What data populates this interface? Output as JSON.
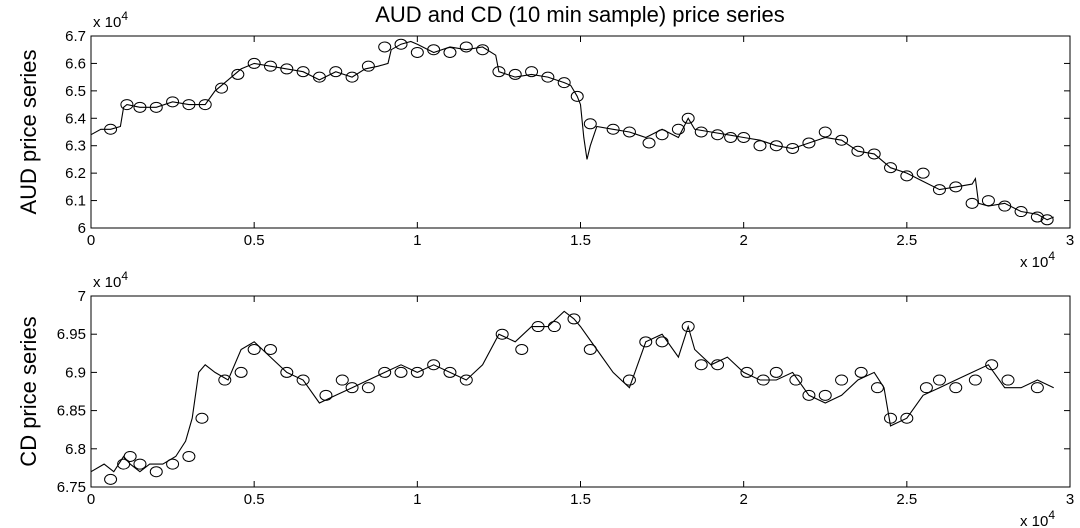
{
  "chart_data": [
    {
      "type": "line",
      "title": "AUD and CD (10 min sample) price series",
      "ylabel": "AUD price series",
      "xlabel": "",
      "x_multiplier_label": "x 10",
      "x_multiplier_exp": "4",
      "y_multiplier_label": "x 10",
      "y_multiplier_exp": "4",
      "xlim": [
        0,
        3
      ],
      "ylim": [
        6.0,
        6.7
      ],
      "xticks": [
        "0",
        "0.5",
        "1",
        "1.5",
        "2",
        "2.5",
        "3"
      ],
      "xtick_values": [
        0,
        0.5,
        1,
        1.5,
        2,
        2.5,
        3
      ],
      "yticks": [
        "6",
        "6.1",
        "6.2",
        "6.3",
        "6.4",
        "6.5",
        "6.6",
        "6.7"
      ],
      "ytick_values": [
        6.0,
        6.1,
        6.2,
        6.3,
        6.4,
        6.5,
        6.6,
        6.7
      ],
      "grid": false,
      "series_color": "#000000",
      "series": [
        {
          "x": [
            0,
            0.03,
            0.06,
            0.09,
            0.1,
            0.11,
            0.15,
            0.2,
            0.25,
            0.3,
            0.35,
            0.38,
            0.42,
            0.46,
            0.5,
            0.55,
            0.6,
            0.65,
            0.7,
            0.75,
            0.8,
            0.84,
            0.88,
            0.91,
            0.92,
            0.95,
            0.98,
            1.0,
            1.05,
            1.1,
            1.15,
            1.2,
            1.24,
            1.25,
            1.3,
            1.35,
            1.4,
            1.45,
            1.47,
            1.49,
            1.5,
            1.51,
            1.52,
            1.53,
            1.55,
            1.6,
            1.65,
            1.7,
            1.75,
            1.8,
            1.83,
            1.85,
            1.9,
            1.95,
            2.0,
            2.05,
            2.1,
            2.15,
            2.2,
            2.25,
            2.3,
            2.35,
            2.4,
            2.45,
            2.5,
            2.55,
            2.6,
            2.65,
            2.7,
            2.71,
            2.72,
            2.75,
            2.8,
            2.85,
            2.9,
            2.93,
            2.95
          ],
          "values": [
            6.34,
            6.36,
            6.36,
            6.37,
            6.44,
            6.45,
            6.44,
            6.44,
            6.46,
            6.45,
            6.45,
            6.5,
            6.54,
            6.58,
            6.6,
            6.59,
            6.58,
            6.57,
            6.54,
            6.57,
            6.55,
            6.58,
            6.59,
            6.6,
            6.65,
            6.67,
            6.68,
            6.67,
            6.64,
            6.66,
            6.65,
            6.66,
            6.63,
            6.57,
            6.55,
            6.56,
            6.55,
            6.53,
            6.52,
            6.48,
            6.45,
            6.33,
            6.25,
            6.3,
            6.37,
            6.36,
            6.35,
            6.33,
            6.36,
            6.33,
            6.4,
            6.36,
            6.35,
            6.34,
            6.33,
            6.32,
            6.3,
            6.29,
            6.31,
            6.33,
            6.32,
            6.28,
            6.27,
            6.22,
            6.2,
            6.17,
            6.14,
            6.15,
            6.16,
            6.18,
            6.09,
            6.08,
            6.09,
            6.06,
            6.05,
            6.03,
            6.04
          ]
        }
      ],
      "markers": {
        "x": [
          0.06,
          0.11,
          0.15,
          0.2,
          0.25,
          0.3,
          0.35,
          0.4,
          0.45,
          0.5,
          0.55,
          0.6,
          0.65,
          0.7,
          0.75,
          0.8,
          0.85,
          0.9,
          0.95,
          1.0,
          1.05,
          1.1,
          1.15,
          1.2,
          1.25,
          1.3,
          1.35,
          1.4,
          1.45,
          1.49,
          1.53,
          1.6,
          1.65,
          1.71,
          1.75,
          1.8,
          1.83,
          1.87,
          1.92,
          1.96,
          2.0,
          2.05,
          2.1,
          2.15,
          2.2,
          2.25,
          2.3,
          2.35,
          2.4,
          2.45,
          2.5,
          2.55,
          2.6,
          2.65,
          2.7,
          2.75,
          2.8,
          2.85,
          2.9,
          2.93
        ],
        "values": [
          6.36,
          6.45,
          6.44,
          6.44,
          6.46,
          6.45,
          6.45,
          6.51,
          6.56,
          6.6,
          6.59,
          6.58,
          6.57,
          6.55,
          6.57,
          6.55,
          6.59,
          6.66,
          6.67,
          6.64,
          6.65,
          6.64,
          6.66,
          6.65,
          6.57,
          6.56,
          6.57,
          6.55,
          6.53,
          6.48,
          6.38,
          6.36,
          6.35,
          6.31,
          6.34,
          6.36,
          6.4,
          6.35,
          6.34,
          6.33,
          6.33,
          6.3,
          6.3,
          6.29,
          6.31,
          6.35,
          6.32,
          6.28,
          6.27,
          6.22,
          6.19,
          6.2,
          6.14,
          6.15,
          6.09,
          6.1,
          6.08,
          6.06,
          6.04,
          6.03
        ]
      }
    },
    {
      "type": "line",
      "title": "",
      "ylabel": "CD price series",
      "xlabel": "",
      "x_multiplier_label": "x 10",
      "x_multiplier_exp": "4",
      "y_multiplier_label": "x 10",
      "y_multiplier_exp": "4",
      "xlim": [
        0,
        3
      ],
      "ylim": [
        6.75,
        7.0
      ],
      "xticks": [
        "0",
        "0.5",
        "1",
        "1.5",
        "2",
        "2.5",
        "3"
      ],
      "xtick_values": [
        0,
        0.5,
        1,
        1.5,
        2,
        2.5,
        3
      ],
      "yticks": [
        "6.75",
        "6.8",
        "6.85",
        "6.9",
        "6.95",
        "7"
      ],
      "ytick_values": [
        6.75,
        6.8,
        6.85,
        6.9,
        6.95,
        7.0
      ],
      "grid": false,
      "series_color": "#000000",
      "series": [
        {
          "x": [
            0,
            0.04,
            0.07,
            0.1,
            0.12,
            0.15,
            0.18,
            0.22,
            0.26,
            0.29,
            0.31,
            0.33,
            0.35,
            0.38,
            0.42,
            0.46,
            0.5,
            0.55,
            0.6,
            0.65,
            0.7,
            0.75,
            0.8,
            0.85,
            0.9,
            0.95,
            1.0,
            1.05,
            1.1,
            1.15,
            1.2,
            1.25,
            1.3,
            1.35,
            1.4,
            1.45,
            1.48,
            1.5,
            1.55,
            1.6,
            1.65,
            1.7,
            1.75,
            1.8,
            1.83,
            1.85,
            1.9,
            1.95,
            2.0,
            2.05,
            2.1,
            2.15,
            2.2,
            2.25,
            2.3,
            2.35,
            2.4,
            2.43,
            2.45,
            2.5,
            2.55,
            2.6,
            2.65,
            2.7,
            2.75,
            2.8,
            2.85,
            2.9,
            2.95
          ],
          "values": [
            6.77,
            6.78,
            6.77,
            6.79,
            6.78,
            6.77,
            6.78,
            6.78,
            6.79,
            6.81,
            6.84,
            6.9,
            6.91,
            6.9,
            6.89,
            6.93,
            6.94,
            6.92,
            6.9,
            6.89,
            6.86,
            6.87,
            6.88,
            6.89,
            6.9,
            6.91,
            6.9,
            6.91,
            6.9,
            6.89,
            6.91,
            6.95,
            6.94,
            6.96,
            6.96,
            6.98,
            6.97,
            6.96,
            6.93,
            6.9,
            6.88,
            6.94,
            6.95,
            6.92,
            6.96,
            6.93,
            6.91,
            6.92,
            6.9,
            6.89,
            6.89,
            6.9,
            6.87,
            6.86,
            6.87,
            6.89,
            6.9,
            6.88,
            6.83,
            6.84,
            6.87,
            6.88,
            6.89,
            6.9,
            6.91,
            6.88,
            6.88,
            6.89,
            6.88
          ]
        }
      ],
      "markers": {
        "x": [
          0.06,
          0.1,
          0.12,
          0.15,
          0.2,
          0.25,
          0.3,
          0.34,
          0.41,
          0.46,
          0.5,
          0.55,
          0.6,
          0.65,
          0.72,
          0.77,
          0.8,
          0.85,
          0.9,
          0.95,
          1.0,
          1.05,
          1.1,
          1.15,
          1.26,
          1.32,
          1.37,
          1.42,
          1.48,
          1.53,
          1.65,
          1.7,
          1.75,
          1.83,
          1.87,
          1.92,
          2.01,
          2.06,
          2.1,
          2.16,
          2.2,
          2.25,
          2.3,
          2.36,
          2.41,
          2.45,
          2.5,
          2.56,
          2.6,
          2.65,
          2.71,
          2.76,
          2.81,
          2.9
        ],
        "values": [
          6.76,
          6.78,
          6.79,
          6.78,
          6.77,
          6.78,
          6.79,
          6.84,
          6.89,
          6.9,
          6.93,
          6.93,
          6.9,
          6.89,
          6.87,
          6.89,
          6.88,
          6.88,
          6.9,
          6.9,
          6.9,
          6.91,
          6.9,
          6.89,
          6.95,
          6.93,
          6.96,
          6.96,
          6.97,
          6.93,
          6.89,
          6.94,
          6.94,
          6.96,
          6.91,
          6.91,
          6.9,
          6.89,
          6.9,
          6.89,
          6.87,
          6.87,
          6.89,
          6.9,
          6.88,
          6.84,
          6.84,
          6.88,
          6.89,
          6.88,
          6.89,
          6.91,
          6.89,
          6.88
        ]
      }
    }
  ]
}
